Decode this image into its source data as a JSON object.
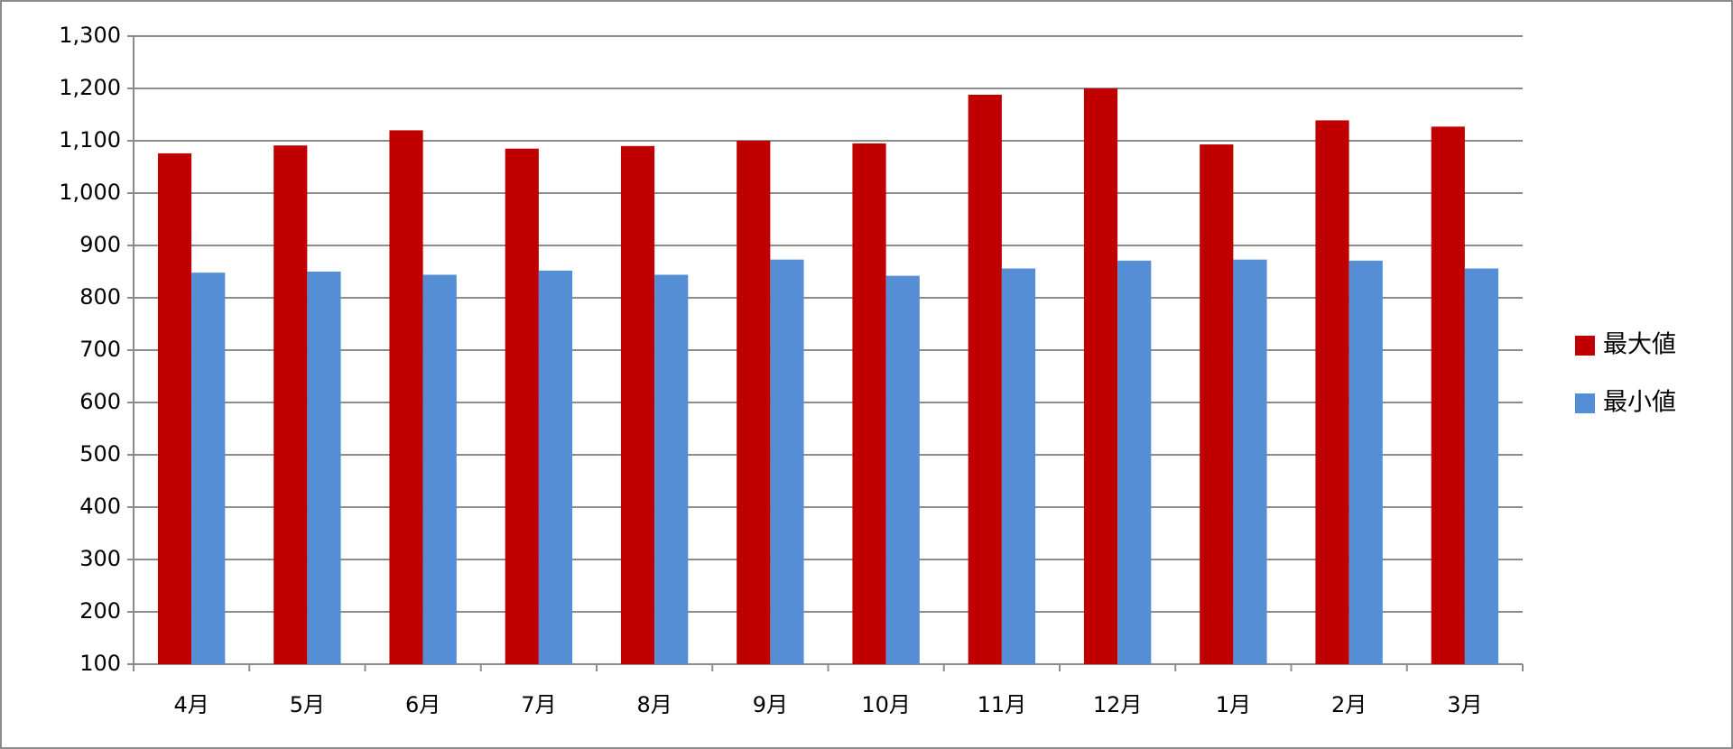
{
  "chart_data": {
    "type": "bar",
    "categories": [
      "4月",
      "5月",
      "6月",
      "7月",
      "8月",
      "9月",
      "10月",
      "11月",
      "12月",
      "1月",
      "2月",
      "3月"
    ],
    "series": [
      {
        "name": "最大値",
        "color": "#c00000",
        "values": [
          1076,
          1091,
          1120,
          1085,
          1090,
          1100,
          1095,
          1188,
          1200,
          1093,
          1139,
          1127
        ]
      },
      {
        "name": "最小値",
        "color": "#558ed5",
        "values": [
          848,
          850,
          844,
          852,
          844,
          873,
          842,
          856,
          871,
          873,
          871,
          856
        ]
      }
    ],
    "ylim": [
      100,
      1300
    ],
    "yticks": [
      100,
      200,
      300,
      400,
      500,
      600,
      700,
      800,
      900,
      {
        "value": 1000,
        "label": "1,000"
      },
      {
        "value": 1100,
        "label": "1,100"
      },
      {
        "value": 1200,
        "label": "1,200"
      },
      {
        "value": 1300,
        "label": "1,300"
      }
    ],
    "grid": true,
    "legend": "right"
  }
}
